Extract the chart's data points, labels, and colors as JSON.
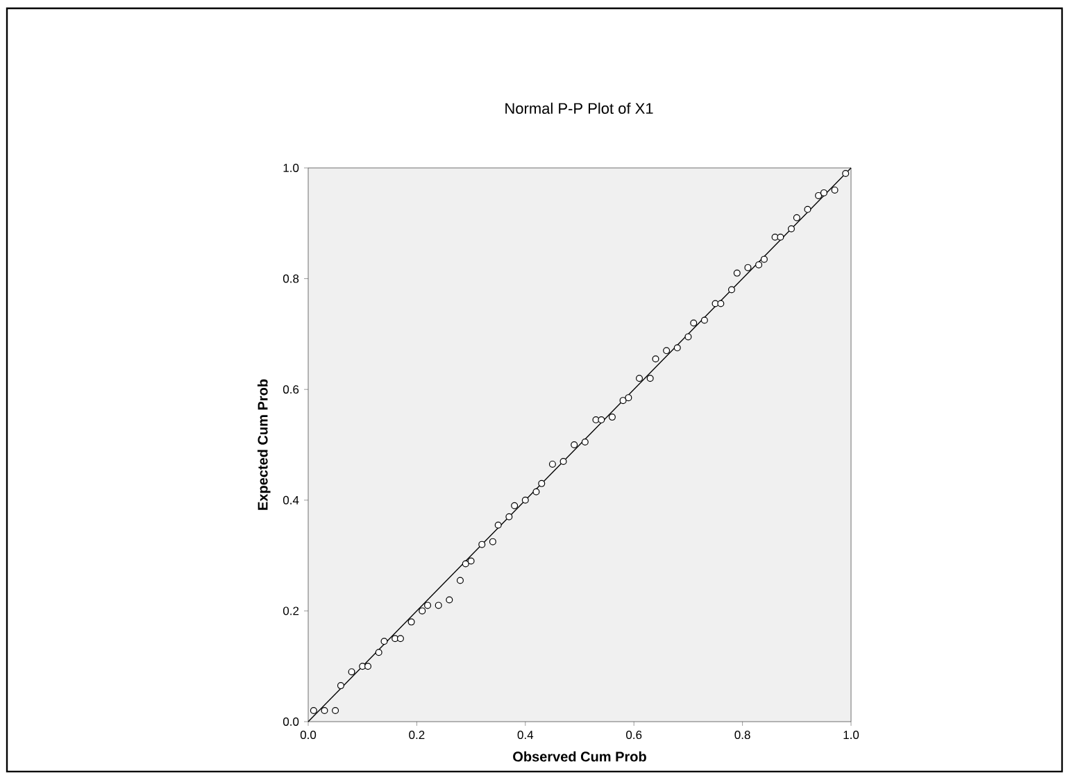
{
  "chart_data": {
    "type": "scatter",
    "title": "Normal P-P Plot of X1",
    "xlabel": "Observed Cum Prob",
    "ylabel": "Expected Cum Prob",
    "xlim": [
      0,
      1
    ],
    "ylim": [
      0,
      1
    ],
    "xticks": [
      {
        "value": 0,
        "label": "0.0"
      },
      {
        "value": 0.2,
        "label": "0.2"
      },
      {
        "value": 0.4,
        "label": "0.4"
      },
      {
        "value": 0.6,
        "label": "0.6"
      },
      {
        "value": 0.8,
        "label": "0.8"
      },
      {
        "value": 1,
        "label": "1.0"
      }
    ],
    "yticks": [
      {
        "value": 0,
        "label": "0.0"
      },
      {
        "value": 0.2,
        "label": "0.2"
      },
      {
        "value": 0.4,
        "label": "0.4"
      },
      {
        "value": 0.6,
        "label": "0.6"
      },
      {
        "value": 0.8,
        "label": "0.8"
      },
      {
        "value": 1,
        "label": "1.0"
      }
    ],
    "series": [
      {
        "color": "#000000",
        "marker": "circle",
        "x": [
          0.01,
          0.03,
          0.05,
          0.06,
          0.08,
          0.1,
          0.11,
          0.13,
          0.14,
          0.16,
          0.17,
          0.19,
          0.21,
          0.22,
          0.24,
          0.26,
          0.28,
          0.29,
          0.3,
          0.32,
          0.34,
          0.35,
          0.37,
          0.38,
          0.4,
          0.42,
          0.43,
          0.45,
          0.47,
          0.49,
          0.51,
          0.53,
          0.54,
          0.56,
          0.58,
          0.59,
          0.61,
          0.63,
          0.64,
          0.66,
          0.68,
          0.7,
          0.71,
          0.73,
          0.75,
          0.76,
          0.78,
          0.79,
          0.81,
          0.83,
          0.84,
          0.86,
          0.87,
          0.89,
          0.9,
          0.92,
          0.94,
          0.95,
          0.97,
          0.99
        ],
        "values": [
          0.02,
          0.02,
          0.02,
          0.065,
          0.09,
          0.1,
          0.1,
          0.125,
          0.145,
          0.15,
          0.15,
          0.18,
          0.2,
          0.21,
          0.21,
          0.22,
          0.255,
          0.285,
          0.29,
          0.32,
          0.325,
          0.355,
          0.37,
          0.39,
          0.4,
          0.415,
          0.43,
          0.465,
          0.47,
          0.5,
          0.505,
          0.545,
          0.545,
          0.55,
          0.58,
          0.585,
          0.62,
          0.62,
          0.655,
          0.67,
          0.675,
          0.695,
          0.72,
          0.725,
          0.755,
          0.755,
          0.78,
          0.81,
          0.82,
          0.825,
          0.835,
          0.875,
          0.875,
          0.89,
          0.91,
          0.925,
          0.95,
          0.955,
          0.96,
          0.99
        ]
      },
      {
        "type": "line",
        "color": "#000000",
        "marker": "none",
        "x": [
          0,
          1
        ],
        "values": [
          0,
          1
        ]
      }
    ]
  }
}
